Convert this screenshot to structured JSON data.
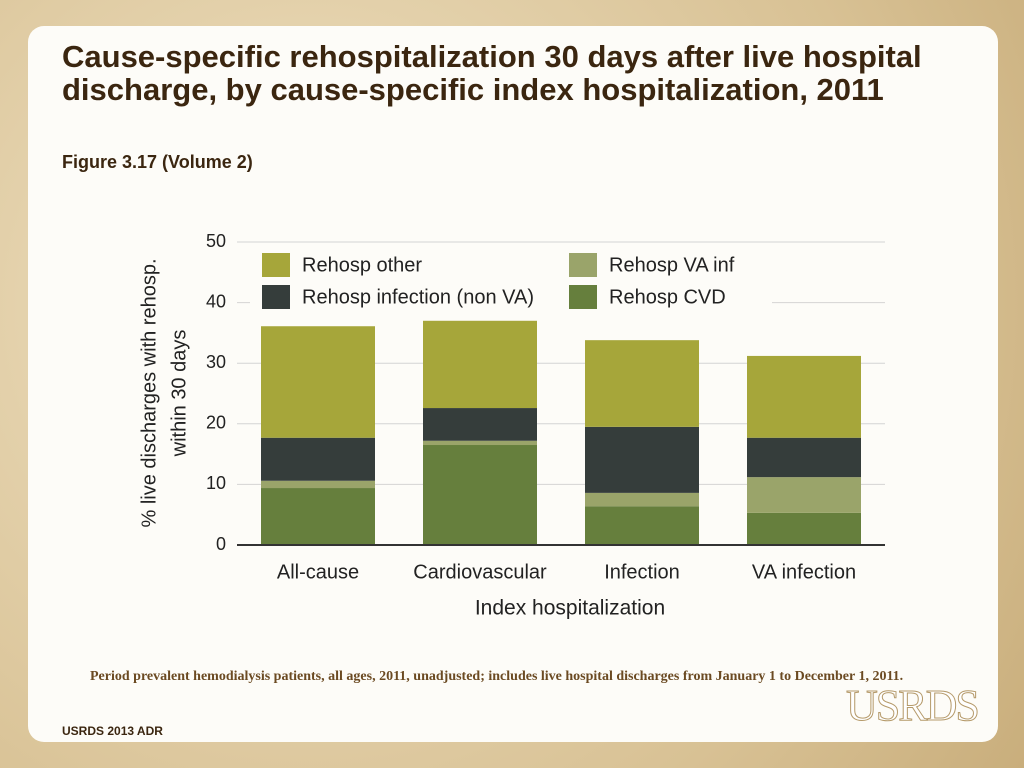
{
  "chart_data": {
    "type": "stacked_bar",
    "title": "Cause-specific rehospitalization 30 days after live hospital discharge, by cause-specific index hospitalization, 2011",
    "subtitle": "Figure 3.17 (Volume 2)",
    "xlabel": "Index hospitalization",
    "ylabel": [
      "% live discharges with rehosp.",
      "within 30 days"
    ],
    "categories": [
      "All-cause",
      "Cardiovascular",
      "Infection",
      "VA infection"
    ],
    "series": [
      {
        "name": "Rehosp CVD",
        "color": "#667f3d",
        "values": [
          9.4,
          16.5,
          6.4,
          5.3
        ]
      },
      {
        "name": "Rehosp VA inf",
        "color": "#9aa46a",
        "values": [
          1.2,
          0.7,
          2.2,
          5.9
        ]
      },
      {
        "name": "Rehosp infection (non VA)",
        "color": "#353d3b",
        "values": [
          7.1,
          5.4,
          10.9,
          6.5
        ]
      },
      {
        "name": "Rehosp other",
        "color": "#a6a63a",
        "values": [
          18.4,
          14.4,
          14.3,
          13.5
        ]
      }
    ],
    "ylim": [
      0,
      50
    ],
    "yticks": [
      0,
      10,
      20,
      30,
      40,
      50
    ],
    "grid": true
  },
  "note": "Period prevalent hemodialysis patients, all ages, 2011, unadjusted; includes live hospital discharges from January 1 to December 1, 2011.",
  "footer": "USRDS 2013 ADR",
  "logo": "USRDS"
}
